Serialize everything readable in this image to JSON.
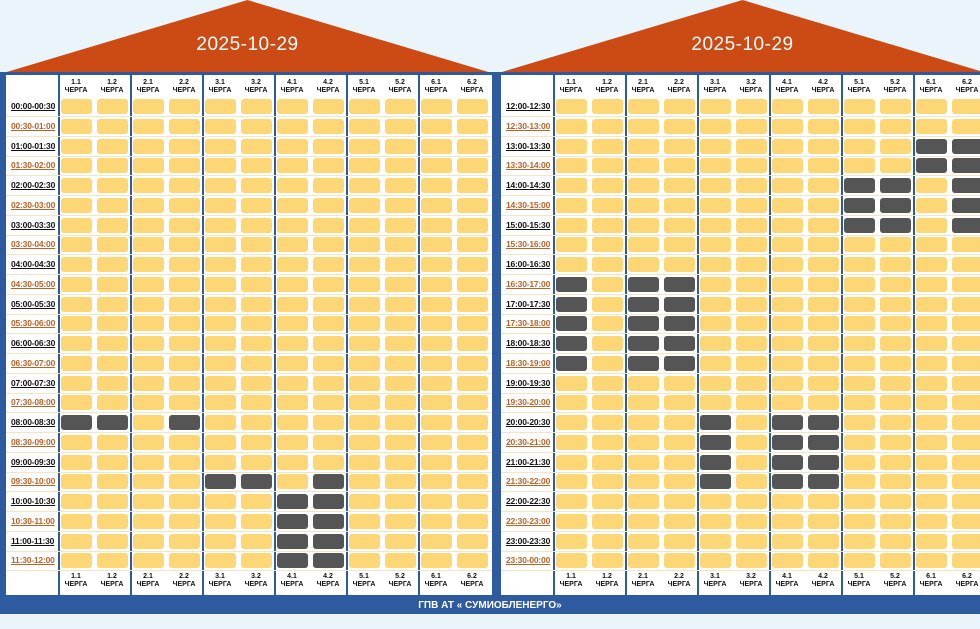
{
  "colors": {
    "roof": "#cc4a14",
    "frame": "#2e5aa0",
    "power_on": "#fdd776",
    "power_off": "#555555",
    "time_even": "#111111",
    "time_odd": "#b8632a"
  },
  "queues": [
    {
      "num": "1.1",
      "word": "ЧЕРГА"
    },
    {
      "num": "1.2",
      "word": "ЧЕРГА"
    },
    {
      "num": "2.1",
      "word": "ЧЕРГА"
    },
    {
      "num": "2.2",
      "word": "ЧЕРГА"
    },
    {
      "num": "3.1",
      "word": "ЧЕРГА"
    },
    {
      "num": "3.2",
      "word": "ЧЕРГА"
    },
    {
      "num": "4.1",
      "word": "ЧЕРГА"
    },
    {
      "num": "4.2",
      "word": "ЧЕРГА"
    },
    {
      "num": "5.1",
      "word": "ЧЕРГА"
    },
    {
      "num": "5.2",
      "word": "ЧЕРГА"
    },
    {
      "num": "6.1",
      "word": "ЧЕРГА"
    },
    {
      "num": "6.2",
      "word": "ЧЕРГА"
    }
  ],
  "panels": [
    {
      "date": "2025-10-29",
      "times": [
        "00:00-00:30",
        "00:30-01:00",
        "01:00-01:30",
        "01:30-02:00",
        "02:00-02:30",
        "02:30-03:00",
        "03:00-03:30",
        "03:30-04:00",
        "04:00-04:30",
        "04:30-05:00",
        "05:00-05:30",
        "05:30-06:00",
        "06:00-06:30",
        "06:30-07:00",
        "07:00-07:30",
        "07:30-08:00",
        "08:00-08:30",
        "08:30-09:00",
        "09:00-09:30",
        "09:30-10:00",
        "10:00-10:30",
        "10:30-11:00",
        "11:00-11:30",
        "11:30-12:00"
      ],
      "outages": [
        [
          16,
          0
        ],
        [
          16,
          1
        ],
        [
          16,
          3
        ],
        [
          19,
          4
        ],
        [
          19,
          5
        ],
        [
          19,
          7
        ],
        [
          20,
          6
        ],
        [
          20,
          7
        ],
        [
          21,
          6
        ],
        [
          21,
          7
        ],
        [
          22,
          6
        ],
        [
          22,
          7
        ],
        [
          23,
          6
        ],
        [
          23,
          7
        ]
      ]
    },
    {
      "date": "2025-10-29",
      "times": [
        "12:00-12:30",
        "12:30-13:00",
        "13:00-13:30",
        "13:30-14:00",
        "14:00-14:30",
        "14:30-15:00",
        "15:00-15:30",
        "15:30-16:00",
        "16:00-16:30",
        "16:30-17:00",
        "17:00-17:30",
        "17:30-18:00",
        "18:00-18:30",
        "18:30-19:00",
        "19:00-19:30",
        "19:30-20:00",
        "20:00-20:30",
        "20:30-21:00",
        "21:00-21:30",
        "21:30-22:00",
        "22:00-22:30",
        "22:30-23:00",
        "23:00-23:30",
        "23:30-00:00"
      ],
      "outages": [
        [
          2,
          10
        ],
        [
          2,
          11
        ],
        [
          3,
          10
        ],
        [
          3,
          11
        ],
        [
          4,
          8
        ],
        [
          4,
          9
        ],
        [
          4,
          11
        ],
        [
          5,
          8
        ],
        [
          5,
          9
        ],
        [
          5,
          11
        ],
        [
          6,
          8
        ],
        [
          6,
          9
        ],
        [
          6,
          11
        ],
        [
          9,
          0
        ],
        [
          9,
          2
        ],
        [
          9,
          3
        ],
        [
          10,
          0
        ],
        [
          10,
          2
        ],
        [
          10,
          3
        ],
        [
          11,
          0
        ],
        [
          11,
          2
        ],
        [
          11,
          3
        ],
        [
          12,
          0
        ],
        [
          12,
          2
        ],
        [
          12,
          3
        ],
        [
          13,
          0
        ],
        [
          13,
          2
        ],
        [
          13,
          3
        ],
        [
          16,
          4
        ],
        [
          16,
          6
        ],
        [
          16,
          7
        ],
        [
          17,
          4
        ],
        [
          17,
          6
        ],
        [
          17,
          7
        ],
        [
          18,
          4
        ],
        [
          18,
          6
        ],
        [
          18,
          7
        ],
        [
          19,
          4
        ],
        [
          19,
          6
        ],
        [
          19,
          7
        ]
      ]
    }
  ],
  "footer": "ГПВ АТ « СУМИОБЛЕНЕРГО»"
}
